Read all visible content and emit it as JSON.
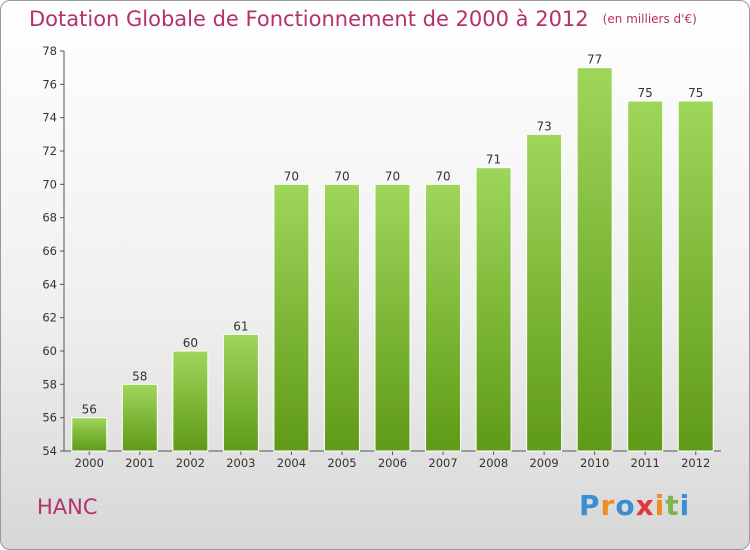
{
  "header": {
    "title": "Dotation Globale de Fonctionnement de 2000 à 2012",
    "subtitle": "(en milliers d'€)"
  },
  "footer": {
    "commune": "HANC",
    "logo_letters": [
      "P",
      "r",
      "o",
      "x",
      "i",
      "t",
      "i"
    ],
    "logo_colors": [
      "#3a8fd0",
      "#f08a24",
      "#3a8fd0",
      "#e0383c",
      "#f08a24",
      "#7ab648",
      "#3a8fd0"
    ]
  },
  "colors": {
    "bar_top": "#9ed65a",
    "bar_bottom": "#5f9a17",
    "text_accent": "#b5316b"
  },
  "chart_data": {
    "type": "bar",
    "categories": [
      "2000",
      "2001",
      "2002",
      "2003",
      "2004",
      "2005",
      "2006",
      "2007",
      "2008",
      "2009",
      "2010",
      "2011",
      "2012"
    ],
    "values": [
      56,
      58,
      60,
      61,
      70,
      70,
      70,
      70,
      71,
      73,
      77,
      75,
      75
    ],
    "title": "Dotation Globale de Fonctionnement de 2000 à 2012",
    "subtitle": "(en milliers d'€)",
    "ylim": [
      54,
      78
    ],
    "yticks": [
      54,
      56,
      58,
      60,
      62,
      64,
      66,
      68,
      70,
      72,
      74,
      76,
      78
    ],
    "grid": false
  }
}
